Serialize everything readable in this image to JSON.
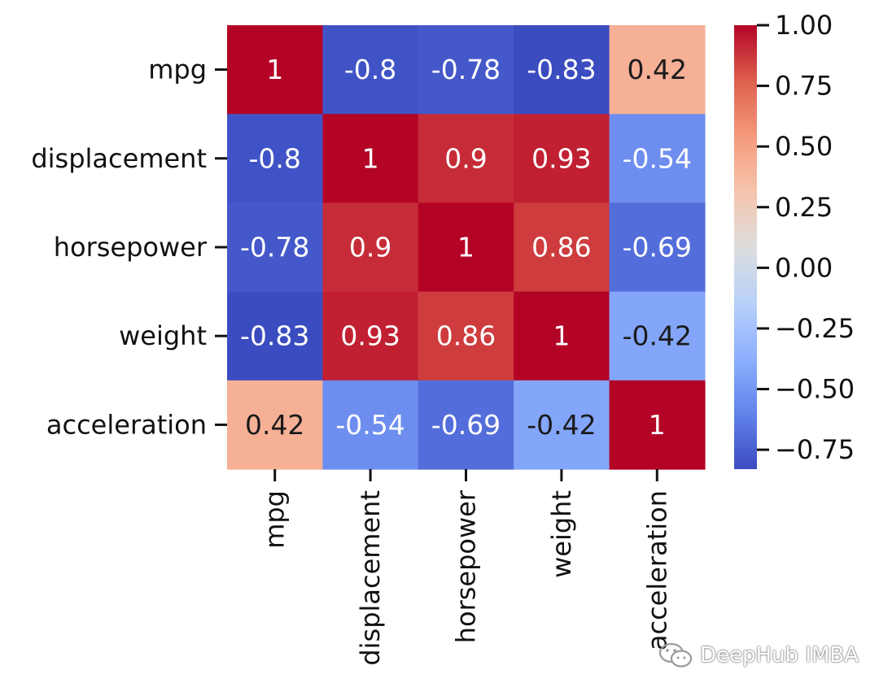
{
  "chart_data": {
    "type": "heatmap",
    "title": "",
    "row_labels": [
      "mpg",
      "displacement",
      "horsepower",
      "weight",
      "acceleration"
    ],
    "col_labels": [
      "mpg",
      "displacement",
      "horsepower",
      "weight",
      "acceleration"
    ],
    "values": [
      [
        1,
        -0.8,
        -0.78,
        -0.83,
        0.42
      ],
      [
        -0.8,
        1,
        0.9,
        0.93,
        -0.54
      ],
      [
        -0.78,
        0.9,
        1,
        0.86,
        -0.69
      ],
      [
        -0.83,
        0.93,
        0.86,
        1,
        -0.42
      ],
      [
        0.42,
        -0.54,
        -0.69,
        -0.42,
        1
      ]
    ],
    "colormap": "coolwarm",
    "annotate": true,
    "colorbar": {
      "range": [
        -0.83,
        1
      ],
      "ticks": [
        1.0,
        0.75,
        0.5,
        0.25,
        0.0,
        -0.25,
        -0.5,
        -0.75
      ],
      "tick_labels": [
        "1.00",
        "0.75",
        "0.50",
        "0.25",
        "0.00",
        "−0.25",
        "−0.50",
        "−0.75"
      ]
    }
  },
  "watermark": {
    "text": "DeepHub IMBA",
    "icon": "wechat-icon"
  }
}
